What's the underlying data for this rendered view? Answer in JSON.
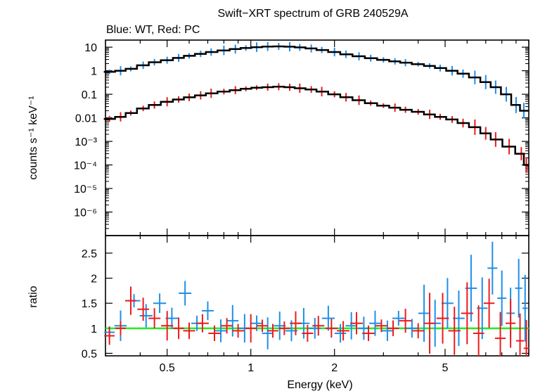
{
  "chart_data": {
    "type": "scatter",
    "title": "Swift−XRT spectrum of GRB 240529A",
    "subtitle": "Blue: WT, Red: PC",
    "xlabel": "Energy (keV)",
    "x_scale": "log",
    "xlim": [
      0.3,
      10
    ],
    "x_ticks": [
      0.5,
      1,
      2,
      5
    ],
    "x_tick_labels": [
      "0.5",
      "1",
      "2",
      "5"
    ],
    "panels": [
      {
        "name": "spectrum",
        "ylabel": "counts s⁻¹ keV⁻¹",
        "y_scale": "log",
        "ylim": [
          1e-07,
          20
        ],
        "y_ticks": [
          10,
          1,
          0.1,
          0.01,
          0.001,
          0.0001,
          1e-05,
          1e-06
        ],
        "y_tick_labels": [
          "10",
          "1",
          "0.1",
          "0.01",
          "10⁻³",
          "10⁻⁴",
          "10⁻⁵",
          "10⁻⁶"
        ],
        "series": [
          {
            "color": "#1f8fe8",
            "mode": "Data",
            "points": [
              [
                0.31,
                0.9
              ],
              [
                0.34,
                1.0
              ],
              [
                0.37,
                1.2
              ],
              [
                0.41,
                1.7
              ],
              [
                0.45,
                2.3
              ],
              [
                0.5,
                2.8
              ],
              [
                0.55,
                3.5
              ],
              [
                0.6,
                4.3
              ],
              [
                0.66,
                5.2
              ],
              [
                0.72,
                6.2
              ],
              [
                0.8,
                7.3
              ],
              [
                0.88,
                8.3
              ],
              [
                0.96,
                9.2
              ],
              [
                1.05,
                10.0
              ],
              [
                1.15,
                10.6
              ],
              [
                1.26,
                10.8
              ],
              [
                1.38,
                10.5
              ],
              [
                1.5,
                9.8
              ],
              [
                1.65,
                8.8
              ],
              [
                1.8,
                7.6
              ],
              [
                2.0,
                6.2
              ],
              [
                2.2,
                5.0
              ],
              [
                2.45,
                4.1
              ],
              [
                2.7,
                3.4
              ],
              [
                3.0,
                2.9
              ],
              [
                3.3,
                2.5
              ],
              [
                3.6,
                2.2
              ],
              [
                4.0,
                1.9
              ],
              [
                4.4,
                1.6
              ],
              [
                4.8,
                1.3
              ],
              [
                5.3,
                1.0
              ],
              [
                5.8,
                0.75
              ],
              [
                6.4,
                0.52
              ],
              [
                7.0,
                0.33
              ],
              [
                7.6,
                0.2
              ],
              [
                8.3,
                0.1
              ],
              [
                9.0,
                0.035
              ],
              [
                9.6,
                0.02
              ]
            ]
          },
          {
            "color": "#ee1b1b",
            "mode": "Data",
            "points": [
              [
                0.31,
                0.009
              ],
              [
                0.34,
                0.011
              ],
              [
                0.37,
                0.016
              ],
              [
                0.41,
                0.025
              ],
              [
                0.45,
                0.035
              ],
              [
                0.5,
                0.048
              ],
              [
                0.55,
                0.06
              ],
              [
                0.6,
                0.074
              ],
              [
                0.66,
                0.09
              ],
              [
                0.72,
                0.11
              ],
              [
                0.8,
                0.13
              ],
              [
                0.88,
                0.15
              ],
              [
                0.96,
                0.17
              ],
              [
                1.05,
                0.19
              ],
              [
                1.15,
                0.2
              ],
              [
                1.26,
                0.21
              ],
              [
                1.38,
                0.2
              ],
              [
                1.5,
                0.18
              ],
              [
                1.65,
                0.16
              ],
              [
                1.8,
                0.13
              ],
              [
                2.0,
                0.1
              ],
              [
                2.2,
                0.075
              ],
              [
                2.45,
                0.056
              ],
              [
                2.7,
                0.042
              ],
              [
                3.0,
                0.033
              ],
              [
                3.3,
                0.027
              ],
              [
                3.6,
                0.022
              ],
              [
                4.0,
                0.018
              ],
              [
                4.4,
                0.014
              ],
              [
                4.8,
                0.011
              ],
              [
                5.3,
                0.0085
              ],
              [
                5.8,
                0.006
              ],
              [
                6.4,
                0.004
              ],
              [
                7.0,
                0.0022
              ],
              [
                7.6,
                0.0012
              ],
              [
                8.5,
                0.0006
              ],
              [
                9.4,
                0.0003
              ],
              [
                9.8,
                0.0001
              ]
            ]
          }
        ],
        "model_color": "#000000"
      },
      {
        "name": "ratio",
        "ylabel": "ratio",
        "y_scale": "linear",
        "ylim": [
          0.45,
          2.85
        ],
        "y_ticks": [
          0.5,
          1,
          1.5,
          2,
          2.5
        ],
        "y_tick_labels": [
          "0.5",
          "1",
          "1.5",
          "2",
          "2.5"
        ],
        "reference_line": {
          "y": 1.0,
          "color": "#22ee22"
        },
        "series": [
          {
            "color": "#1f8fe8",
            "points": [
              [
                0.31,
                0.92
              ],
              [
                0.34,
                1.05
              ],
              [
                0.38,
                1.55
              ],
              [
                0.42,
                1.25
              ],
              [
                0.47,
                1.5
              ],
              [
                0.52,
                1.2
              ],
              [
                0.58,
                1.7
              ],
              [
                0.64,
                1.1
              ],
              [
                0.7,
                1.35
              ],
              [
                0.78,
                0.95
              ],
              [
                0.86,
                1.15
              ],
              [
                0.95,
                1.0
              ],
              [
                1.05,
                1.1
              ],
              [
                1.15,
                0.9
              ],
              [
                1.27,
                1.05
              ],
              [
                1.4,
                0.95
              ],
              [
                1.55,
                1.1
              ],
              [
                1.7,
                1.0
              ],
              [
                1.9,
                1.2
              ],
              [
                2.1,
                0.9
              ],
              [
                2.3,
                1.05
              ],
              [
                2.55,
                1.0
              ],
              [
                2.8,
                1.1
              ],
              [
                3.1,
                0.95
              ],
              [
                3.4,
                1.2
              ],
              [
                3.8,
                1.0
              ],
              [
                4.2,
                1.3
              ],
              [
                4.6,
                1.1
              ],
              [
                5.1,
                1.5
              ],
              [
                5.6,
                1.2
              ],
              [
                6.2,
                1.8
              ],
              [
                6.8,
                1.4
              ],
              [
                7.4,
                2.2
              ],
              [
                8.0,
                1.6
              ],
              [
                8.6,
                1.3
              ],
              [
                9.2,
                1.8
              ],
              [
                9.7,
                1.4
              ]
            ]
          },
          {
            "color": "#ee1b1b",
            "points": [
              [
                0.31,
                0.85
              ],
              [
                0.34,
                1.0
              ],
              [
                0.37,
                1.55
              ],
              [
                0.41,
                1.38
              ],
              [
                0.45,
                1.2
              ],
              [
                0.5,
                1.05
              ],
              [
                0.55,
                1.0
              ],
              [
                0.6,
                0.95
              ],
              [
                0.67,
                1.1
              ],
              [
                0.74,
                0.9
              ],
              [
                0.82,
                1.05
              ],
              [
                0.9,
                0.95
              ],
              [
                1.0,
                1.0
              ],
              [
                1.1,
                1.05
              ],
              [
                1.2,
                0.95
              ],
              [
                1.32,
                1.0
              ],
              [
                1.45,
                1.1
              ],
              [
                1.6,
                0.9
              ],
              [
                1.75,
                1.05
              ],
              [
                1.95,
                1.0
              ],
              [
                2.15,
                0.95
              ],
              [
                2.4,
                1.1
              ],
              [
                2.65,
                0.9
              ],
              [
                2.95,
                1.05
              ],
              [
                3.25,
                1.0
              ],
              [
                3.6,
                1.15
              ],
              [
                4.0,
                0.95
              ],
              [
                4.4,
                1.1
              ],
              [
                4.9,
                1.2
              ],
              [
                5.4,
                0.95
              ],
              [
                6.0,
                1.3
              ],
              [
                6.6,
                0.9
              ],
              [
                7.2,
                1.5
              ],
              [
                7.9,
                0.8
              ],
              [
                8.6,
                1.1
              ],
              [
                9.3,
                0.75
              ],
              [
                9.8,
                0.6
              ]
            ]
          }
        ]
      }
    ]
  }
}
